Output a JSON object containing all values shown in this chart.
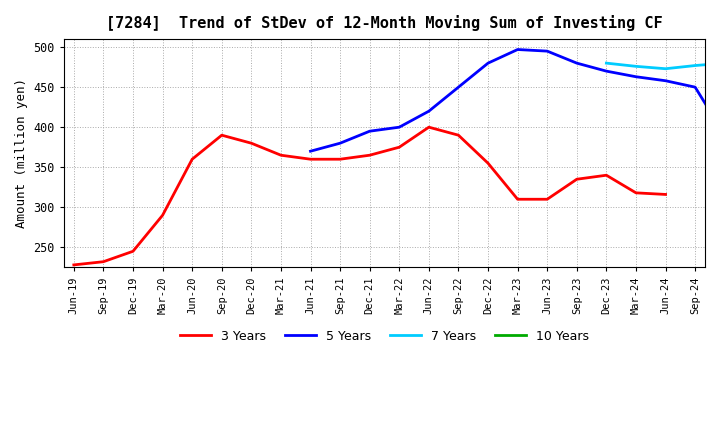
{
  "title": "[7284]  Trend of StDev of 12-Month Moving Sum of Investing CF",
  "ylabel": "Amount (million yen)",
  "ylim": [
    225,
    510
  ],
  "yticks": [
    250,
    300,
    350,
    400,
    450,
    500
  ],
  "background_color": "#ffffff",
  "grid_color": "#aaaaaa",
  "series": {
    "3years": {
      "color": "#ff0000",
      "label": "3 Years",
      "x": [
        0,
        3,
        6,
        9,
        12,
        15,
        18,
        21,
        24,
        27,
        30,
        33,
        36,
        39,
        42,
        45,
        48,
        51,
        54,
        57,
        60
      ],
      "y": [
        228,
        232,
        245,
        290,
        360,
        390,
        380,
        365,
        360,
        360,
        365,
        375,
        400,
        390,
        355,
        310,
        310,
        335,
        340,
        318,
        316
      ]
    },
    "5years": {
      "color": "#0000ff",
      "label": "5 Years",
      "x": [
        24,
        27,
        30,
        33,
        36,
        39,
        42,
        45,
        48,
        51,
        54,
        57,
        60,
        63,
        66
      ],
      "y": [
        370,
        380,
        395,
        400,
        420,
        450,
        480,
        497,
        495,
        480,
        470,
        463,
        458,
        450,
        390
      ]
    },
    "7years": {
      "color": "#00ccff",
      "label": "7 Years",
      "x": [
        54,
        57,
        60,
        63,
        66
      ],
      "y": [
        480,
        476,
        473,
        477,
        480
      ]
    },
    "10years": {
      "color": "#00aa00",
      "label": "10 Years",
      "x": [],
      "y": []
    }
  },
  "xtick_labels": [
    "Jun-19",
    "Sep-19",
    "Dec-19",
    "Mar-20",
    "Jun-20",
    "Sep-20",
    "Dec-20",
    "Mar-21",
    "Jun-21",
    "Sep-21",
    "Dec-21",
    "Mar-22",
    "Jun-22",
    "Sep-22",
    "Dec-22",
    "Mar-23",
    "Jun-23",
    "Sep-23",
    "Dec-23",
    "Mar-24",
    "Jun-24",
    "Sep-24"
  ]
}
